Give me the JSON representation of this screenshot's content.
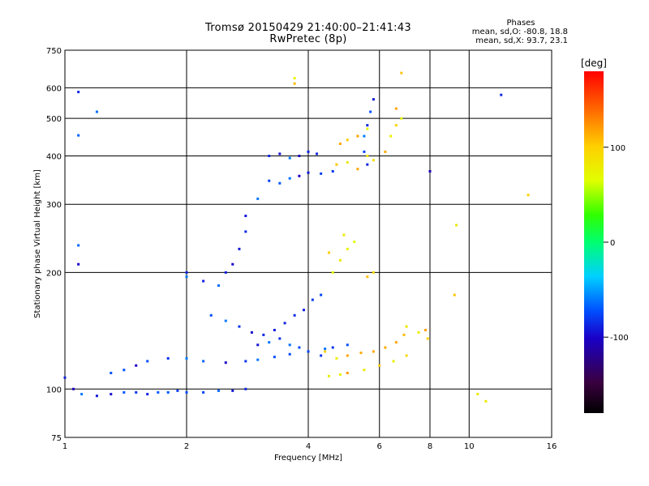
{
  "header": {
    "title_line1": "Tromsø 20150429 21:40:00–21:41:43",
    "title_line2": "RwPretec (8p)",
    "stats_title": "Phases",
    "stats_O": "mean, sd,O: -80.8, 18.8",
    "stats_X": "mean, sd,X:  93.7, 23.1"
  },
  "chart_data": {
    "type": "scatter",
    "title": "Tromsø 20150429 21:40:00–21:41:43 RwPretec (8p)",
    "xlabel": "Frequency [MHz]",
    "ylabel": "Stationary phase Virtual Height [km]",
    "x_scale": "log",
    "y_scale": "log",
    "xlim": [
      1,
      16
    ],
    "ylim": [
      75,
      750
    ],
    "x_ticks": [
      1,
      2,
      4,
      6,
      8,
      10,
      16
    ],
    "y_ticks": [
      75,
      100,
      200,
      300,
      400,
      500,
      600,
      750
    ],
    "x_gridlines": [
      2,
      4,
      6,
      8,
      10
    ],
    "y_gridlines": [
      100,
      200,
      300,
      400,
      500,
      600
    ],
    "colorbar": {
      "label": "[deg]",
      "range": [
        -180,
        180
      ],
      "ticks": [
        -100,
        0,
        100
      ],
      "colormap": "rainbow: black-purple-blue-cyan-green-yellow-orange-red"
    },
    "series": [
      {
        "name": "O",
        "phase": -80,
        "points": [
          [
            1.05,
            100
          ],
          [
            1.1,
            97
          ],
          [
            1.2,
            96
          ],
          [
            1.3,
            97
          ],
          [
            1.4,
            98
          ],
          [
            1.5,
            98
          ],
          [
            1.6,
            97
          ],
          [
            1.7,
            98
          ],
          [
            1.8,
            98
          ],
          [
            1.9,
            99
          ],
          [
            2.0,
            98
          ],
          [
            2.2,
            98
          ],
          [
            2.4,
            99
          ],
          [
            2.6,
            99
          ],
          [
            2.8,
            100
          ],
          [
            1.3,
            110
          ],
          [
            1.4,
            112
          ],
          [
            1.5,
            115
          ],
          [
            1.6,
            118
          ],
          [
            1.8,
            120
          ],
          [
            2.0,
            120
          ],
          [
            2.2,
            118
          ],
          [
            2.5,
            117
          ],
          [
            2.8,
            118
          ],
          [
            3.0,
            119
          ],
          [
            3.3,
            121
          ],
          [
            3.6,
            123
          ],
          [
            4.0,
            125
          ],
          [
            4.4,
            127
          ],
          [
            2.0,
            195
          ],
          [
            2.0,
            200
          ],
          [
            2.2,
            190
          ],
          [
            2.4,
            185
          ],
          [
            2.5,
            200
          ],
          [
            2.6,
            210
          ],
          [
            2.7,
            230
          ],
          [
            2.8,
            255
          ],
          [
            2.8,
            280
          ],
          [
            3.0,
            310
          ],
          [
            3.2,
            345
          ],
          [
            3.4,
            340
          ],
          [
            3.6,
            350
          ],
          [
            3.8,
            355
          ],
          [
            4.0,
            362
          ],
          [
            4.3,
            360
          ],
          [
            4.6,
            365
          ],
          [
            3.2,
            400
          ],
          [
            3.4,
            405
          ],
          [
            3.6,
            395
          ],
          [
            3.8,
            400
          ],
          [
            4.0,
            410
          ],
          [
            4.2,
            405
          ],
          [
            2.3,
            155
          ],
          [
            2.5,
            150
          ],
          [
            2.7,
            145
          ],
          [
            2.9,
            140
          ],
          [
            3.1,
            138
          ],
          [
            3.3,
            142
          ],
          [
            3.5,
            148
          ],
          [
            3.7,
            155
          ],
          [
            3.9,
            160
          ],
          [
            4.1,
            170
          ],
          [
            4.3,
            175
          ],
          [
            3.0,
            130
          ],
          [
            3.2,
            132
          ],
          [
            3.4,
            135
          ],
          [
            3.6,
            130
          ],
          [
            3.8,
            128
          ],
          [
            4.0,
            125
          ],
          [
            4.3,
            122
          ],
          [
            4.6,
            128
          ],
          [
            5.0,
            130
          ],
          [
            5.5,
            450
          ],
          [
            5.6,
            480
          ],
          [
            5.7,
            520
          ],
          [
            5.8,
            560
          ],
          [
            5.5,
            410
          ],
          [
            5.6,
            380
          ],
          [
            1.0,
            107
          ],
          [
            1.08,
            585
          ],
          [
            1.08,
            452
          ],
          [
            1.2,
            520
          ],
          [
            1.08,
            210
          ],
          [
            1.08,
            235
          ],
          [
            8.0,
            365
          ],
          [
            12.0,
            575
          ]
        ]
      },
      {
        "name": "X",
        "phase": 95,
        "points": [
          [
            4.5,
            108
          ],
          [
            4.8,
            109
          ],
          [
            5.0,
            110
          ],
          [
            5.5,
            112
          ],
          [
            6.0,
            115
          ],
          [
            6.5,
            118
          ],
          [
            7.0,
            122
          ],
          [
            4.4,
            125
          ],
          [
            4.7,
            120
          ],
          [
            5.0,
            122
          ],
          [
            5.4,
            124
          ],
          [
            5.8,
            125
          ],
          [
            6.2,
            128
          ],
          [
            6.6,
            132
          ],
          [
            6.9,
            138
          ],
          [
            7.0,
            145
          ],
          [
            4.6,
            200
          ],
          [
            4.8,
            215
          ],
          [
            5.0,
            230
          ],
          [
            5.2,
            240
          ],
          [
            4.5,
            225
          ],
          [
            4.9,
            250
          ],
          [
            5.6,
            195
          ],
          [
            5.8,
            200
          ],
          [
            4.7,
            380
          ],
          [
            5.0,
            385
          ],
          [
            5.3,
            370
          ],
          [
            5.6,
            400
          ],
          [
            5.8,
            390
          ],
          [
            6.2,
            410
          ],
          [
            6.4,
            450
          ],
          [
            6.6,
            480
          ],
          [
            6.8,
            500
          ],
          [
            6.6,
            530
          ],
          [
            5.0,
            440
          ],
          [
            5.3,
            450
          ],
          [
            5.6,
            470
          ],
          [
            4.8,
            430
          ],
          [
            7.5,
            140
          ],
          [
            7.8,
            142
          ],
          [
            7.9,
            135
          ],
          [
            9.2,
            175
          ],
          [
            9.3,
            265
          ],
          [
            10.5,
            97
          ],
          [
            11.0,
            93
          ],
          [
            14.0,
            317
          ],
          [
            3.7,
            635
          ],
          [
            3.7,
            615
          ],
          [
            6.8,
            655
          ]
        ]
      }
    ]
  }
}
